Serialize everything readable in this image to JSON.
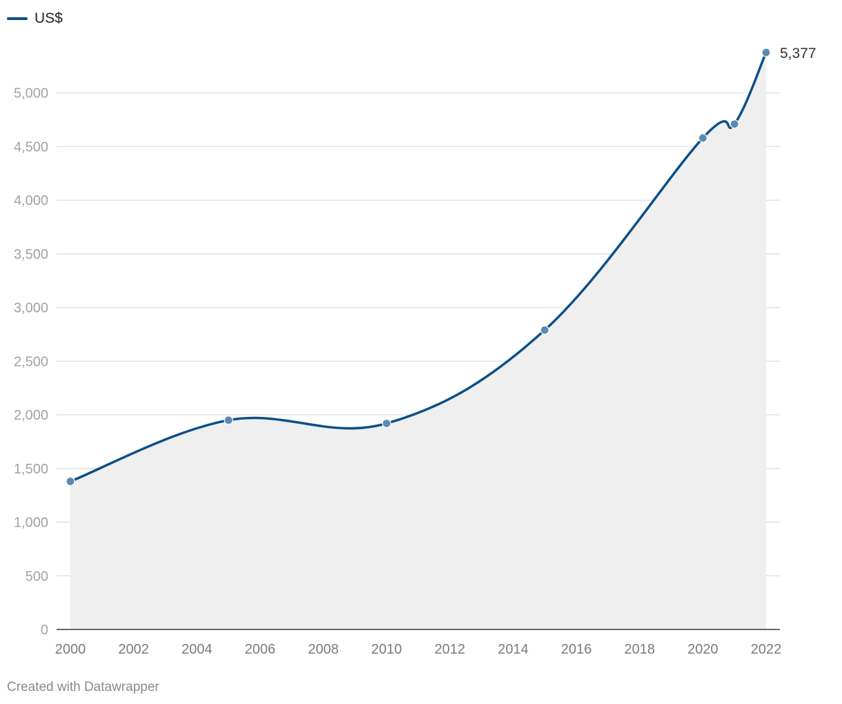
{
  "chart_data": {
    "type": "area",
    "legend_position": "top-left",
    "series": [
      {
        "name": "US$",
        "color": "#0b4f87",
        "x": [
          2000,
          2005,
          2010,
          2015,
          2020,
          2021,
          2022
        ],
        "y": [
          1380,
          1950,
          1920,
          2790,
          4580,
          4710,
          5377
        ]
      }
    ],
    "x_ticks": [
      2000,
      2002,
      2004,
      2006,
      2008,
      2010,
      2012,
      2014,
      2016,
      2018,
      2020,
      2022
    ],
    "x_tick_labels": [
      "2000",
      "2002",
      "2004",
      "2006",
      "2008",
      "2010",
      "2012",
      "2014",
      "2016",
      "2018",
      "2020",
      "2022"
    ],
    "y_ticks": [
      0,
      500,
      1000,
      1500,
      2000,
      2500,
      3000,
      3500,
      4000,
      4500,
      5000
    ],
    "y_tick_labels": [
      "0",
      "500",
      "1,000",
      "1,500",
      "2,000",
      "2,500",
      "3,000",
      "3,500",
      "4,000",
      "4,500",
      "5,000"
    ],
    "xlim": [
      2000,
      2022
    ],
    "ylim": [
      0,
      5377
    ],
    "grid": true,
    "area_fill": "#efefef",
    "end_label": "5,377"
  },
  "footer": {
    "credit": "Created with Datawrapper"
  }
}
